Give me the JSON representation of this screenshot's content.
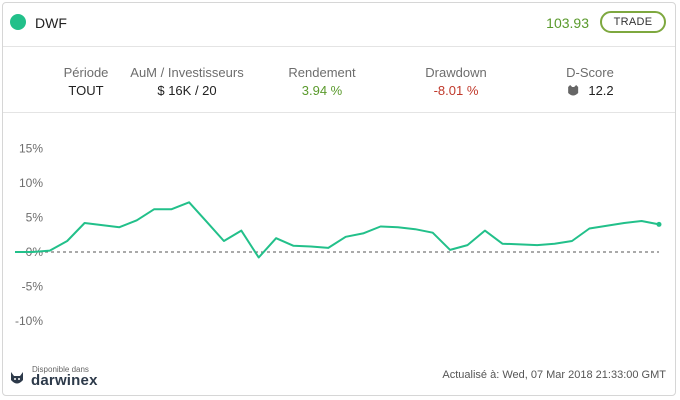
{
  "header": {
    "name": "DWF",
    "price": "103.93",
    "trade_label": "TRADE",
    "dot_color": "#22c08a"
  },
  "stats": {
    "period_label": "Période",
    "period_value": "TOUT",
    "aum_label": "AuM / Investisseurs",
    "aum_value": "$ 16K / 20",
    "return_label": "Rendement",
    "return_value": "3.94 %",
    "drawdown_label": "Drawdown",
    "drawdown_value": "-8.01 %",
    "dscore_label": "D-Score",
    "dscore_value": "12.2"
  },
  "chart_data": {
    "type": "line",
    "title": "",
    "xlabel": "",
    "ylabel": "",
    "ylim": [
      -14,
      18
    ],
    "yticks": [
      "15%",
      "10%",
      "5%",
      "0%",
      "-5%",
      "-10%"
    ],
    "ytick_values": [
      15,
      10,
      5,
      0,
      -5,
      -10
    ],
    "zero_line": true,
    "grid": false,
    "legend": "none",
    "colors": {
      "line": "#22c08a",
      "zero": "#555555"
    },
    "series": [
      {
        "values": [
          0,
          0,
          0.2,
          1.6,
          4.2,
          3.9,
          3.6,
          4.6,
          6.2,
          6.2,
          7.2,
          4.4,
          1.6,
          3.1,
          -0.8,
          2.0,
          0.9,
          0.8,
          0.6,
          2.2,
          2.7,
          3.7,
          3.6,
          3.3,
          2.8,
          0.3,
          1.0,
          3.1,
          1.2,
          1.1,
          1.0,
          1.2,
          1.6,
          3.4,
          3.8,
          4.2,
          4.5,
          4.0
        ]
      }
    ]
  },
  "footer": {
    "available_label": "Disponible dans",
    "brand": "darwinex",
    "updated": "Actualisé à: Wed, 07 Mar 2018 21:33:00 GMT"
  }
}
